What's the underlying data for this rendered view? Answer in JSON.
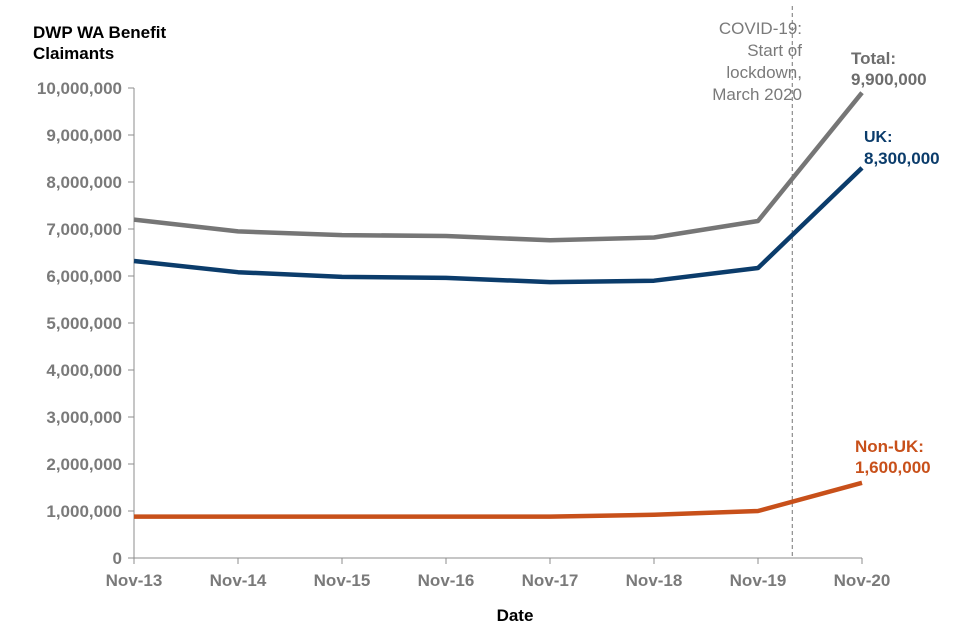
{
  "chart_data": {
    "type": "line",
    "ylabel": "DWP WA Benefit Claimants",
    "xlabel": "Date",
    "categories": [
      "Nov-13",
      "Nov-14",
      "Nov-15",
      "Nov-16",
      "Nov-17",
      "Nov-18",
      "Nov-19",
      "Nov-20"
    ],
    "ylim": [
      0,
      10000000
    ],
    "yticks": [
      "0",
      "1,000,000",
      "2,000,000",
      "3,000,000",
      "4,000,000",
      "5,000,000",
      "6,000,000",
      "7,000,000",
      "8,000,000",
      "9,000,000",
      "10,000,000"
    ],
    "grid": false,
    "series": [
      {
        "name": "Total",
        "color": "#767676",
        "values": [
          7200000,
          6950000,
          6870000,
          6850000,
          6760000,
          6820000,
          7170000,
          9900000
        ],
        "end_label": [
          "Total:",
          "9,900,000"
        ]
      },
      {
        "name": "UK",
        "color": "#0b3c6b",
        "values": [
          6320000,
          6080000,
          5980000,
          5960000,
          5870000,
          5900000,
          6170000,
          8300000
        ],
        "end_label": [
          "UK:",
          "8,300,000"
        ]
      },
      {
        "name": "Non-UK",
        "color": "#c8501a",
        "values": [
          880000,
          880000,
          880000,
          880000,
          880000,
          920000,
          1000000,
          1600000
        ],
        "end_label": [
          "Non-UK:",
          "1,600,000"
        ]
      }
    ],
    "annotations": [
      {
        "text": [
          "COVID-19:",
          "Start of",
          "lockdown,",
          "March 2020"
        ],
        "x_index": 6.33,
        "style": "dashed-vertical-line"
      }
    ]
  }
}
